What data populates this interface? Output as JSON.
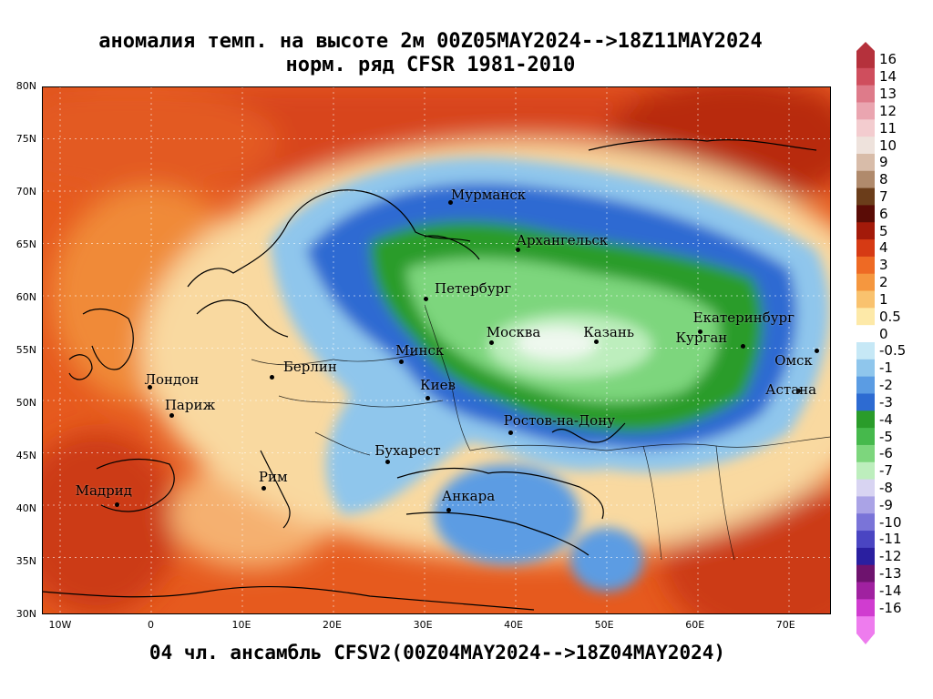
{
  "title": {
    "line1": "аномалия темп. на высоте 2м 00Z05MAY2024-->18Z11MAY2024",
    "line2": "норм. ряд CFSR 1981-2010"
  },
  "footer": "04 чл. ансамбль CFSV2(00Z04MAY2024-->18Z04MAY2024)",
  "axes": {
    "lat": [
      "80N",
      "75N",
      "70N",
      "65N",
      "60N",
      "55N",
      "50N",
      "45N",
      "40N",
      "35N",
      "30N"
    ],
    "lon": [
      "10W",
      "0",
      "10E",
      "20E",
      "30E",
      "40E",
      "50E",
      "60E",
      "70E"
    ]
  },
  "cities": [
    {
      "name": "Мурманск"
    },
    {
      "name": "Архангельск"
    },
    {
      "name": "Петербург"
    },
    {
      "name": "Москва"
    },
    {
      "name": "Казань"
    },
    {
      "name": "Екатеринбург"
    },
    {
      "name": "Курган"
    },
    {
      "name": "Омск"
    },
    {
      "name": "Астана"
    },
    {
      "name": "Минск"
    },
    {
      "name": "Берлин"
    },
    {
      "name": "Лондон"
    },
    {
      "name": "Париж"
    },
    {
      "name": "Киев"
    },
    {
      "name": "Ростов-на-Дону"
    },
    {
      "name": "Бухарест"
    },
    {
      "name": "Рим"
    },
    {
      "name": "Мадрид"
    },
    {
      "name": "Анкара"
    }
  ],
  "colorbar": {
    "labels": [
      "16",
      "14",
      "13",
      "12",
      "11",
      "10",
      "9",
      "8",
      "7",
      "6",
      "5",
      "4",
      "3",
      "2",
      "1",
      "0.5",
      "0",
      "-0.5",
      "-1",
      "-2",
      "-3",
      "-4",
      "-5",
      "-6",
      "-7",
      "-8",
      "-9",
      "-10",
      "-11",
      "-12",
      "-13",
      "-14",
      "-16"
    ],
    "colors": [
      "#b5313c",
      "#cf4e5d",
      "#de7b8a",
      "#eaa5b0",
      "#f3cccf",
      "#eee2dc",
      "#d8bca9",
      "#b08a6c",
      "#6b3d1a",
      "#5a0c06",
      "#a31a0a",
      "#d63a14",
      "#ee6a24",
      "#f5973f",
      "#f9c26e",
      "#fde9a8",
      "#ffffff",
      "#c6e8f6",
      "#8fc6ec",
      "#5b9ce3",
      "#2d6bd2",
      "#2a9c2a",
      "#46b94c",
      "#7dd67d",
      "#bdeebd",
      "#d8d4f2",
      "#aaa3e6",
      "#7a74d8",
      "#4a45c2",
      "#2a1fa0",
      "#6e136e",
      "#a021a0",
      "#d03cd0",
      "#ee7cee"
    ]
  }
}
